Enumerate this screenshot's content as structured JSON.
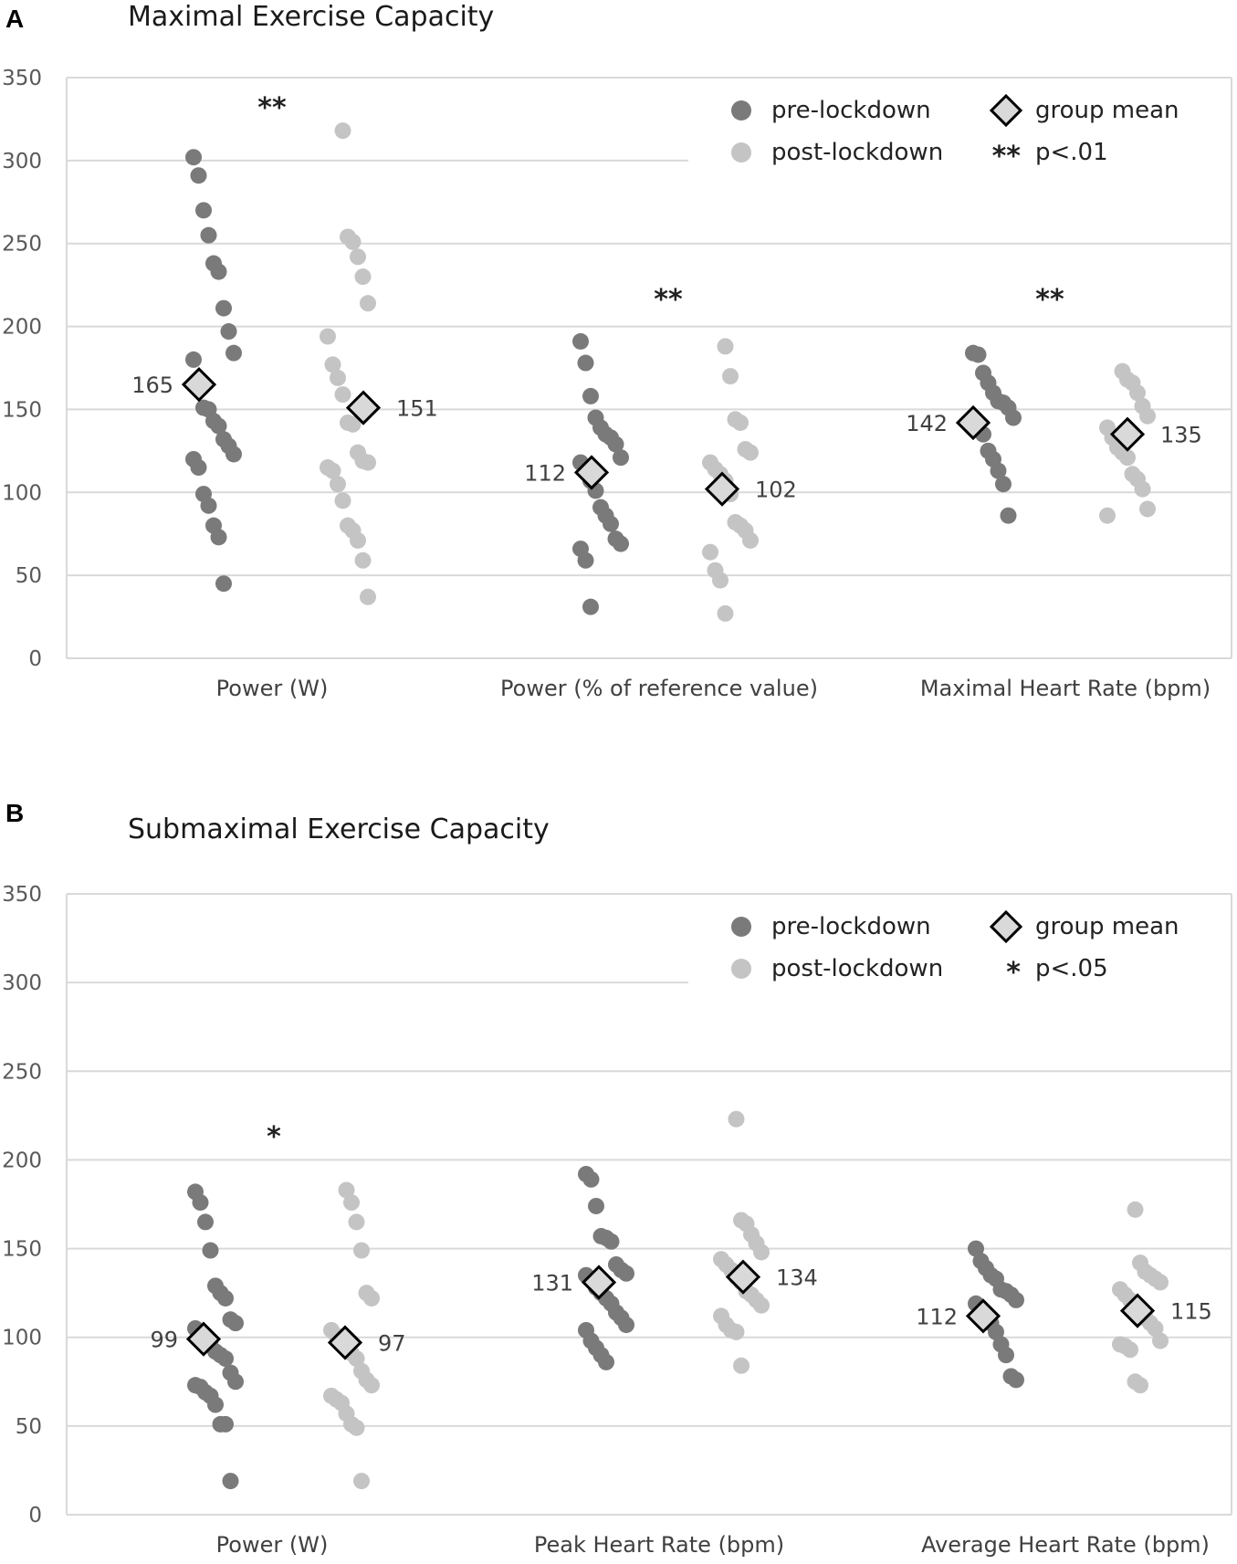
{
  "chart_data": [
    {
      "type": "scatter",
      "panel_letter": "A",
      "title": "Maximal Exercise Capacity",
      "ylim": [
        0,
        350
      ],
      "yticks": [
        "0",
        "50",
        "100",
        "150",
        "200",
        "250",
        "300",
        "350"
      ],
      "grid": true,
      "legend": {
        "placement": "top-right",
        "pre": "pre-lockdown",
        "post": "post-lockdown",
        "mean": "group mean",
        "sig_symbol": "**",
        "sig_text": "p<.01"
      },
      "colors": {
        "pre": "#7a7a7a",
        "post": "#c4c4c4",
        "mean_fill": "#d9d9d9",
        "grid": "#d9d9d9"
      },
      "categories": [
        {
          "label": "Power (W)",
          "significance": "**",
          "pre": [
            302,
            291,
            270,
            255,
            238,
            233,
            211,
            197,
            184,
            180,
            162,
            151,
            150,
            143,
            140,
            132,
            128,
            123,
            120,
            115,
            99,
            92,
            80,
            73,
            45
          ],
          "post": [
            318,
            254,
            251,
            242,
            230,
            214,
            194,
            177,
            169,
            159,
            142,
            141,
            124,
            119,
            118,
            115,
            113,
            105,
            95,
            80,
            77,
            71,
            59,
            37
          ],
          "pre_mean": 165,
          "post_mean": 151,
          "pre_mean_label": "165",
          "post_mean_label": "151"
        },
        {
          "label": "Power (% of reference value)",
          "significance": "**",
          "pre": [
            191,
            178,
            158,
            145,
            139,
            135,
            133,
            129,
            121,
            118,
            114,
            107,
            101,
            91,
            86,
            81,
            72,
            69,
            66,
            59,
            31
          ],
          "post": [
            188,
            170,
            144,
            142,
            126,
            124,
            118,
            114,
            111,
            107,
            99,
            82,
            80,
            77,
            71,
            64,
            53,
            47,
            27
          ],
          "pre_mean": 112,
          "post_mean": 102,
          "pre_mean_label": "112",
          "post_mean_label": "102"
        },
        {
          "label": "Maximal Heart Rate (bpm)",
          "significance": "**",
          "pre": [
            184,
            183,
            172,
            166,
            160,
            155,
            154,
            151,
            145,
            143,
            139,
            135,
            125,
            120,
            113,
            105,
            86
          ],
          "post": [
            173,
            168,
            166,
            160,
            152,
            146,
            139,
            133,
            127,
            124,
            121,
            111,
            108,
            102,
            90,
            86
          ],
          "pre_mean": 142,
          "post_mean": 135,
          "pre_mean_label": "142",
          "post_mean_label": "135"
        }
      ]
    },
    {
      "type": "scatter",
      "panel_letter": "B",
      "title": "Submaximal Exercise Capacity",
      "ylim": [
        0,
        350
      ],
      "yticks": [
        "0",
        "50",
        "100",
        "150",
        "200",
        "250",
        "300",
        "350"
      ],
      "grid": true,
      "legend": {
        "placement": "top-right",
        "pre": "pre-lockdown",
        "post": "post-lockdown",
        "mean": "group mean",
        "sig_symbol": "*",
        "sig_text": "p<.05"
      },
      "colors": {
        "pre": "#7a7a7a",
        "post": "#c4c4c4",
        "mean_fill": "#d9d9d9",
        "grid": "#d9d9d9"
      },
      "categories": [
        {
          "label": "Power (W)",
          "significance": "*",
          "pre": [
            182,
            176,
            165,
            149,
            129,
            125,
            122,
            110,
            108,
            105,
            101,
            99,
            98,
            92,
            90,
            88,
            80,
            75,
            73,
            72,
            69,
            67,
            62,
            51,
            51,
            19
          ],
          "post": [
            183,
            176,
            165,
            149,
            125,
            122,
            104,
            101,
            100,
            96,
            91,
            88,
            81,
            76,
            73,
            67,
            65,
            63,
            57,
            51,
            49,
            19
          ],
          "pre_mean": 99,
          "post_mean": 97,
          "pre_mean_label": "99",
          "post_mean_label": "97"
        },
        {
          "label": "Peak Heart Rate (bpm)",
          "significance": "",
          "pre": [
            192,
            189,
            174,
            157,
            156,
            154,
            141,
            138,
            136,
            135,
            133,
            128,
            125,
            122,
            119,
            114,
            111,
            107,
            104,
            98,
            94,
            90,
            86
          ],
          "post": [
            223,
            166,
            164,
            158,
            153,
            148,
            144,
            141,
            138,
            134,
            131,
            126,
            124,
            121,
            118,
            112,
            107,
            104,
            103,
            84
          ],
          "pre_mean": 131,
          "post_mean": 134,
          "pre_mean_label": "131",
          "post_mean_label": "134"
        },
        {
          "label": "Average Heart Rate (bpm)",
          "significance": "",
          "pre": [
            150,
            143,
            139,
            135,
            133,
            127,
            126,
            124,
            121,
            119,
            115,
            110,
            108,
            103,
            96,
            90,
            78,
            76
          ],
          "post": [
            172,
            142,
            137,
            135,
            133,
            131,
            127,
            124,
            121,
            119,
            116,
            111,
            108,
            105,
            98,
            96,
            95,
            93,
            75,
            73
          ],
          "pre_mean": 112,
          "post_mean": 115,
          "pre_mean_label": "112",
          "post_mean_label": "115"
        }
      ]
    }
  ]
}
